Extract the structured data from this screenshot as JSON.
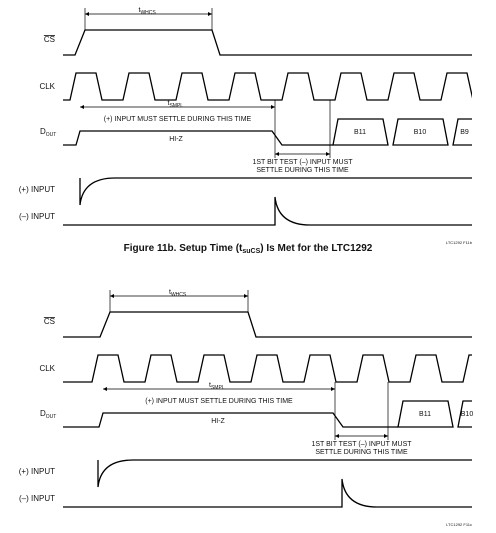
{
  "panels": [
    {
      "signals": {
        "cs": "CS",
        "clk": "CLK",
        "dout": "D",
        "dout_sub": "OUT",
        "plus": "(+) INPUT",
        "minus": "(–) INPUT"
      },
      "twhcs": "t",
      "twhcs_sub": "WHCS",
      "tsmpl": "t",
      "tsmpl_sub": "SMPL",
      "settle": "(+) INPUT MUST SETTLE DURING THIS TIME",
      "hiz": "HI-Z",
      "bits": [
        "B11",
        "B10",
        "B9"
      ],
      "test_line1": "1ST BIT TEST (–) INPUT MUST",
      "test_line2": "SETTLE DURING THIS TIME",
      "ref": "LTC1292 F11b"
    },
    {
      "signals": {
        "cs": "CS",
        "clk": "CLK",
        "dout": "D",
        "dout_sub": "OUT",
        "plus": "(+) INPUT",
        "minus": "(–) INPUT"
      },
      "twhcs": "t",
      "twhcs_sub": "WHCS",
      "tsmpl": "t",
      "tsmpl_sub": "SMPL",
      "settle": "(+) INPUT MUST SETTLE DURING THIS TIME",
      "hiz": "HI-Z",
      "bits": [
        "B11",
        "B10"
      ],
      "test_line1": "1ST BIT TEST (–) INPUT MUST",
      "test_line2": "SETTLE DURING THIS TIME",
      "ref": "LTC1292 F11c"
    }
  ],
  "caption": {
    "a": "Figure 11b.  Setup Time (t",
    "sub": "suCS",
    "b": ") Is Met for the LTC1292"
  }
}
